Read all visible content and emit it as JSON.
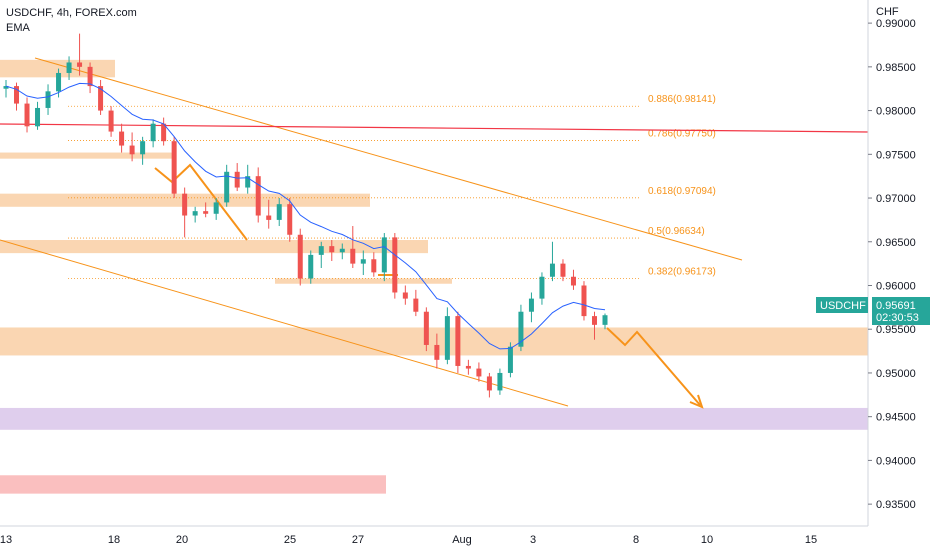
{
  "header": {
    "symbol": "USDCHF, 4h, FOREX.com",
    "indicator": "EMA"
  },
  "chart_data": {
    "type": "candlestick",
    "currency_label": "CHF",
    "y_ticks": [
      "0.99000",
      "0.98500",
      "0.98000",
      "0.97500",
      "0.97000",
      "0.96500",
      "0.96000",
      "0.95500",
      "0.95000",
      "0.94500",
      "0.94000",
      "0.93500"
    ],
    "y_range": [
      0.9325,
      0.9915
    ],
    "x_ticks": [
      "13",
      "18",
      "20",
      "25",
      "27",
      "Aug",
      "3",
      "8",
      "10",
      "15"
    ],
    "price_badge": {
      "symbol": "USDCHF",
      "price": "0.95691",
      "countdown": "02:30:53",
      "color": "#26a69a"
    },
    "fib_levels": [
      {
        "label": "0.886(0.98141)",
        "value": 0.98141
      },
      {
        "label": "0.786(0.97750)",
        "value": 0.9775
      },
      {
        "label": "0.618(0.97094)",
        "value": 0.97094
      },
      {
        "label": "0.5(0.96634)",
        "value": 0.96634
      },
      {
        "label": "0.382(0.96173)",
        "value": 0.96173
      }
    ],
    "zones": [
      {
        "from": 0.9838,
        "to": 0.9858,
        "color": "#f9cfa4"
      },
      {
        "from": 0.9745,
        "to": 0.9752,
        "color": "#f9cfa4"
      },
      {
        "from": 0.969,
        "to": 0.9705,
        "color": "#f9cfa4"
      },
      {
        "from": 0.9637,
        "to": 0.9652,
        "color": "#f9cfa4"
      },
      {
        "from": 0.9602,
        "to": 0.9608,
        "color": "#f9cfa4"
      },
      {
        "from": 0.952,
        "to": 0.9552,
        "color": "#f9cfa4"
      },
      {
        "from": 0.9435,
        "to": 0.946,
        "color": "#d9c6ea"
      },
      {
        "from": 0.9362,
        "to": 0.9383,
        "color": "#f9b4b4"
      }
    ],
    "candles": [
      [
        0.9825,
        0.9835,
        0.9815,
        0.9828
      ],
      [
        0.9828,
        0.9832,
        0.98,
        0.9808
      ],
      [
        0.9808,
        0.9815,
        0.9775,
        0.9782
      ],
      [
        0.9782,
        0.981,
        0.9778,
        0.9803
      ],
      [
        0.9803,
        0.983,
        0.9795,
        0.9822
      ],
      [
        0.9822,
        0.9848,
        0.9815,
        0.9843
      ],
      [
        0.9843,
        0.9862,
        0.9835,
        0.9855
      ],
      [
        0.9855,
        0.9888,
        0.984,
        0.985
      ],
      [
        0.985,
        0.9855,
        0.982,
        0.9828
      ],
      [
        0.9828,
        0.9835,
        0.9795,
        0.98
      ],
      [
        0.98,
        0.9805,
        0.977,
        0.9776
      ],
      [
        0.9776,
        0.9785,
        0.9752,
        0.976
      ],
      [
        0.976,
        0.9775,
        0.9742,
        0.975
      ],
      [
        0.975,
        0.977,
        0.9738,
        0.9765
      ],
      [
        0.9765,
        0.979,
        0.9758,
        0.9785
      ],
      [
        0.9785,
        0.9792,
        0.976,
        0.9765
      ],
      [
        0.9765,
        0.977,
        0.97,
        0.9705
      ],
      [
        0.9705,
        0.9712,
        0.9655,
        0.968
      ],
      [
        0.968,
        0.969,
        0.9672,
        0.9685
      ],
      [
        0.9685,
        0.9695,
        0.9678,
        0.9682
      ],
      [
        0.9682,
        0.97,
        0.9675,
        0.9695
      ],
      [
        0.9695,
        0.9738,
        0.969,
        0.973
      ],
      [
        0.973,
        0.974,
        0.9708,
        0.9712
      ],
      [
        0.9712,
        0.9738,
        0.9705,
        0.9725
      ],
      [
        0.9725,
        0.9735,
        0.9672,
        0.968
      ],
      [
        0.968,
        0.9698,
        0.9665,
        0.9675
      ],
      [
        0.9675,
        0.97,
        0.9668,
        0.9693
      ],
      [
        0.9693,
        0.97,
        0.965,
        0.9658
      ],
      [
        0.9658,
        0.9665,
        0.96,
        0.9608
      ],
      [
        0.9608,
        0.964,
        0.9602,
        0.9635
      ],
      [
        0.9635,
        0.965,
        0.962,
        0.9645
      ],
      [
        0.9645,
        0.9652,
        0.9628,
        0.9638
      ],
      [
        0.9638,
        0.9648,
        0.963,
        0.9642
      ],
      [
        0.9642,
        0.9668,
        0.962,
        0.9625
      ],
      [
        0.9625,
        0.964,
        0.9612,
        0.963
      ],
      [
        0.963,
        0.9638,
        0.961,
        0.9615
      ],
      [
        0.9615,
        0.966,
        0.9605,
        0.9655
      ],
      [
        0.9655,
        0.966,
        0.9585,
        0.9592
      ],
      [
        0.9592,
        0.96,
        0.9578,
        0.9585
      ],
      [
        0.9585,
        0.9595,
        0.9565,
        0.957
      ],
      [
        0.957,
        0.9575,
        0.9525,
        0.9532
      ],
      [
        0.9532,
        0.9545,
        0.9505,
        0.9515
      ],
      [
        0.9515,
        0.9575,
        0.951,
        0.9565
      ],
      [
        0.9565,
        0.957,
        0.95,
        0.9508
      ],
      [
        0.9508,
        0.9515,
        0.9498,
        0.9505
      ],
      [
        0.9505,
        0.9512,
        0.949,
        0.9496
      ],
      [
        0.9496,
        0.95,
        0.9472,
        0.948
      ],
      [
        0.948,
        0.9505,
        0.9475,
        0.95
      ],
      [
        0.95,
        0.9535,
        0.9495,
        0.953
      ],
      [
        0.953,
        0.9578,
        0.9525,
        0.957
      ],
      [
        0.957,
        0.9592,
        0.9558,
        0.9585
      ],
      [
        0.9585,
        0.9615,
        0.9578,
        0.961
      ],
      [
        0.961,
        0.965,
        0.9605,
        0.9625
      ],
      [
        0.9625,
        0.963,
        0.9605,
        0.961
      ],
      [
        0.961,
        0.9618,
        0.9595,
        0.96
      ],
      [
        0.96,
        0.9605,
        0.956,
        0.9565
      ],
      [
        0.9565,
        0.957,
        0.9538,
        0.9555
      ],
      [
        0.9555,
        0.9568,
        0.955,
        0.9566
      ]
    ]
  }
}
